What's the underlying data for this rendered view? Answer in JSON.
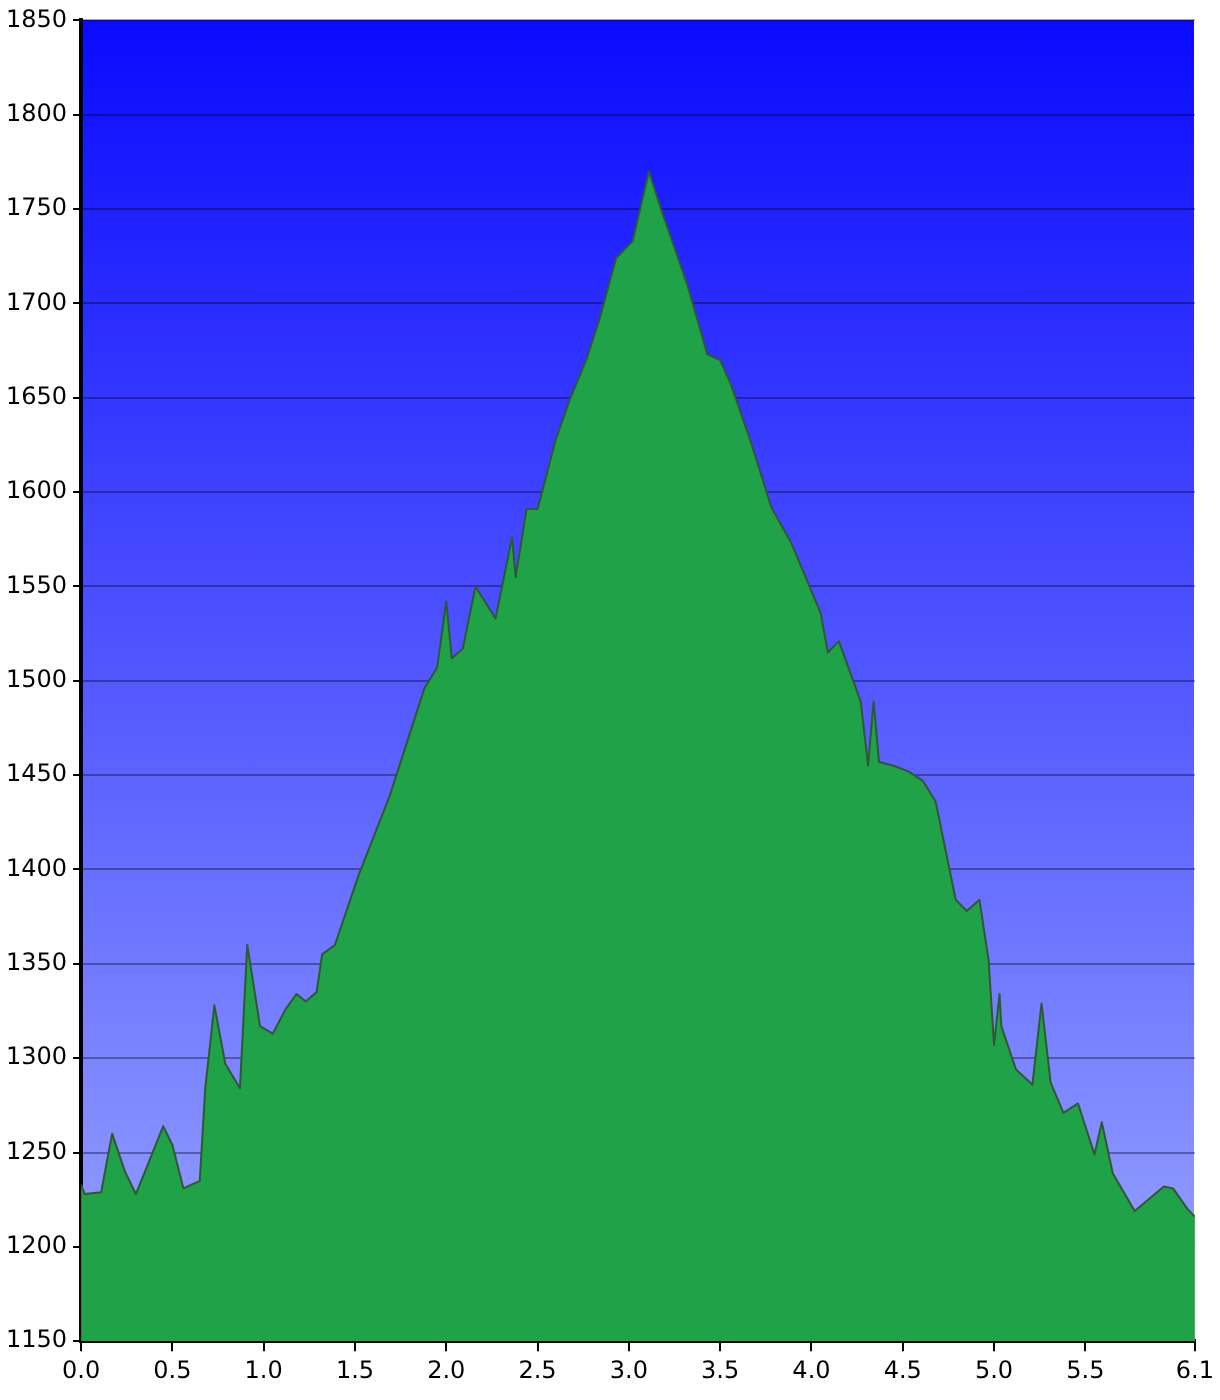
{
  "chart_data": {
    "type": "area",
    "x": [
      0.0,
      0.02,
      0.11,
      0.17,
      0.24,
      0.3,
      0.45,
      0.5,
      0.56,
      0.65,
      0.68,
      0.73,
      0.79,
      0.87,
      0.91,
      0.98,
      1.05,
      1.12,
      1.18,
      1.23,
      1.29,
      1.32,
      1.39,
      1.52,
      1.69,
      1.88,
      1.95,
      2.0,
      2.03,
      2.09,
      2.16,
      2.27,
      2.36,
      2.38,
      2.44,
      2.5,
      2.6,
      2.68,
      2.77,
      2.84,
      2.93,
      3.02,
      3.11,
      3.18,
      3.32,
      3.43,
      3.5,
      3.56,
      3.67,
      3.78,
      3.89,
      4.05,
      4.09,
      4.15,
      4.27,
      4.31,
      4.34,
      4.37,
      4.45,
      4.53,
      4.61,
      4.68,
      4.79,
      4.85,
      4.92,
      4.97,
      5.0,
      5.03,
      5.04,
      5.12,
      5.21,
      5.26,
      5.31,
      5.38,
      5.46,
      5.55,
      5.59,
      5.65,
      5.77,
      5.93,
      5.98,
      6.06,
      6.1
    ],
    "series": [
      {
        "color": "#1fa248",
        "values": [
          1233,
          1228,
          1229,
          1260,
          1240,
          1228,
          1264,
          1254,
          1231,
          1235,
          1284,
          1328,
          1297,
          1284,
          1360,
          1317,
          1313,
          1326,
          1334,
          1330,
          1335,
          1355,
          1360,
          1397,
          1439,
          1496,
          1507,
          1542,
          1512,
          1517,
          1550,
          1533,
          1576,
          1555,
          1591,
          1591,
          1628,
          1650,
          1671,
          1692,
          1724,
          1733,
          1770,
          1749,
          1710,
          1673,
          1670,
          1657,
          1626,
          1592,
          1573,
          1536,
          1515,
          1521,
          1489,
          1455,
          1489,
          1457,
          1455,
          1452,
          1447,
          1436,
          1384,
          1378,
          1384,
          1352,
          1307,
          1334,
          1317,
          1294,
          1286,
          1329,
          1287,
          1271,
          1276,
          1249,
          1266,
          1239,
          1219,
          1232,
          1231,
          1220,
          1216
        ]
      }
    ],
    "xlim": [
      0,
      6.1
    ],
    "xticks": [
      {
        "value": 0,
        "label": "0.0"
      },
      {
        "value": 0.5,
        "label": "0.5"
      },
      {
        "value": 1,
        "label": "1.0"
      },
      {
        "value": 1.5,
        "label": "1.5"
      },
      {
        "value": 2,
        "label": "2.0"
      },
      {
        "value": 2.5,
        "label": "2.5"
      },
      {
        "value": 3,
        "label": "3.0"
      },
      {
        "value": 3.5,
        "label": "3.5"
      },
      {
        "value": 4,
        "label": "4.0"
      },
      {
        "value": 4.5,
        "label": "4.5"
      },
      {
        "value": 5,
        "label": "5.0"
      },
      {
        "value": 5.5,
        "label": "5.5"
      },
      {
        "value": 6.1,
        "label": "6.1"
      }
    ],
    "ylim": [
      1150,
      1850
    ],
    "yticks": [
      1150,
      1200,
      1250,
      1300,
      1350,
      1400,
      1450,
      1500,
      1550,
      1600,
      1650,
      1700,
      1750,
      1800,
      1850
    ],
    "grid": "y",
    "legend": false,
    "marker": "none"
  }
}
